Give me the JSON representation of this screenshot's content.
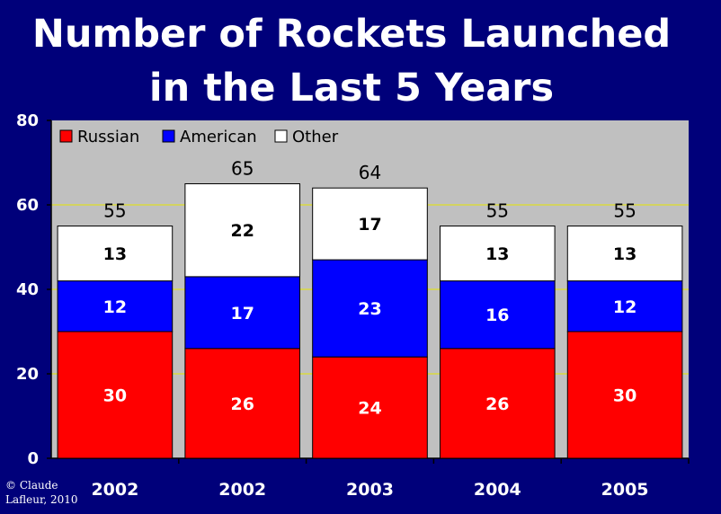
{
  "chart_data": {
    "type": "bar",
    "stacked": true,
    "title": "Number of Rockets Launched in the Last 5 Years",
    "title_lines": [
      "Number of Rockets Launched",
      "in the Last 5 Years"
    ],
    "categories": [
      "2002",
      "2002",
      "2003",
      "2004",
      "2005"
    ],
    "series": [
      {
        "name": "Russian",
        "color": "#ff0000",
        "values": [
          30,
          26,
          24,
          26,
          30
        ]
      },
      {
        "name": "American",
        "color": "#0000ff",
        "values": [
          12,
          17,
          23,
          16,
          12
        ]
      },
      {
        "name": "Other",
        "color": "#ffffff",
        "values": [
          13,
          22,
          17,
          13,
          13
        ]
      }
    ],
    "totals": [
      55,
      65,
      64,
      55,
      55
    ],
    "ylim": [
      0,
      80
    ],
    "yticks": [
      0,
      20,
      40,
      60,
      80
    ],
    "grid": true,
    "gridline_color": "#e6e600",
    "plot_background": "#c0c0c0",
    "legend_position": "top-left",
    "xlabel": "",
    "ylabel": ""
  },
  "copyright": [
    "© Claude",
    "Lafleur, 2010"
  ]
}
